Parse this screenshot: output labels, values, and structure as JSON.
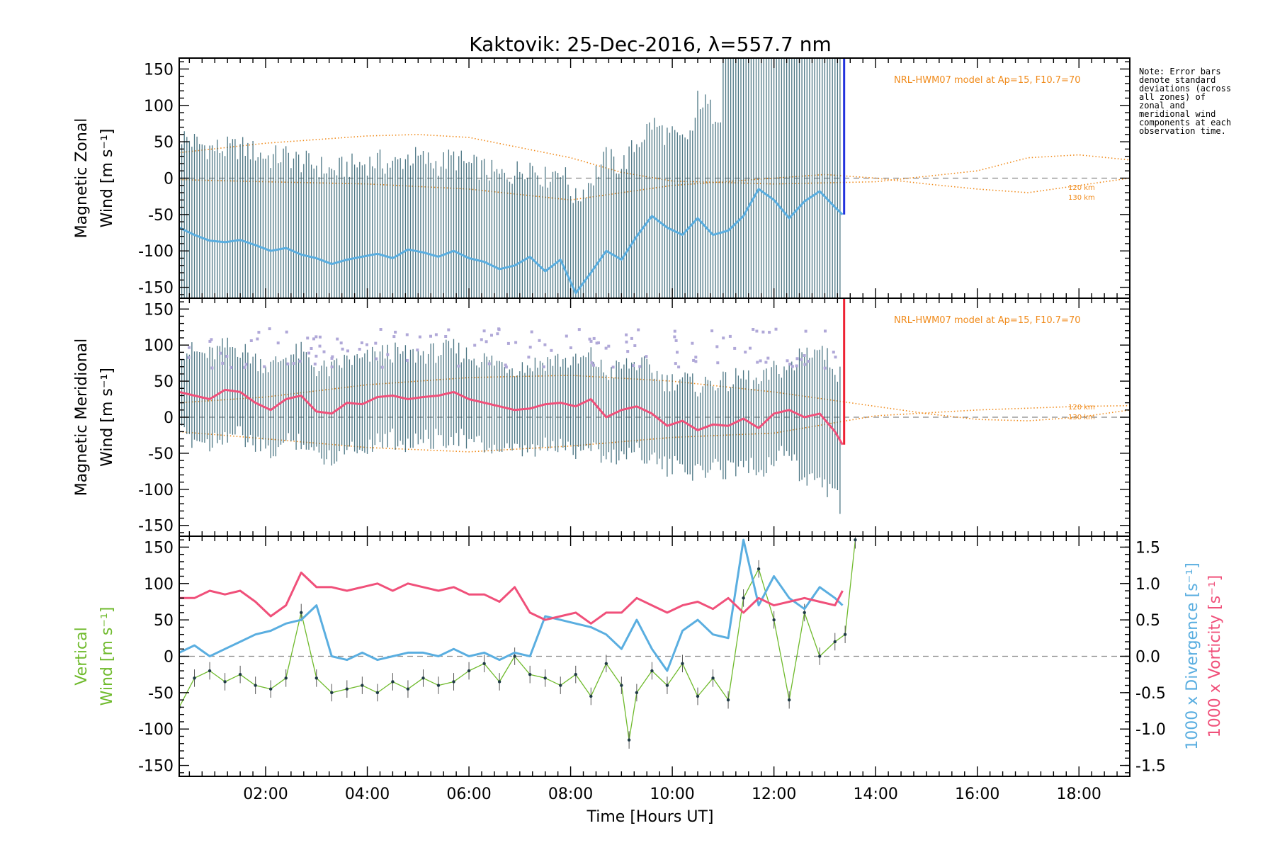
{
  "chart_data": {
    "title": "Kaktovik: 25-Dec-2016, λ=557.7 nm",
    "type": "line",
    "xlabel": "Time [Hours UT]",
    "x_tick_labels": [
      "02:00",
      "04:00",
      "06:00",
      "08:00",
      "10:00",
      "12:00",
      "14:00",
      "16:00",
      "18:00"
    ],
    "x_range_hours": [
      0.3,
      19.0
    ],
    "note": "Note: Error bars denote standard deviations (across all zones) of zonal and meridional wind components at each observation time.",
    "model_label": "NRL-HWM07 model at Ap=15, F10.7=70",
    "altitude_labels": [
      "120 km",
      "130 km"
    ],
    "panels": [
      {
        "id": "zonal",
        "ylabel_line1": "Magnetic Zonal",
        "ylabel_line2": "Wind [m s⁻¹]",
        "ylim": [
          -165,
          165
        ],
        "yticks": [
          150,
          100,
          50,
          0,
          -50,
          -100,
          -150
        ],
        "series": [
          {
            "color": "#5aaee0",
            "x": [
              0.3,
              0.6,
              0.9,
              1.2,
              1.5,
              1.8,
              2.1,
              2.4,
              2.7,
              3.0,
              3.3,
              3.6,
              3.9,
              4.2,
              4.5,
              4.8,
              5.1,
              5.4,
              5.7,
              6.0,
              6.3,
              6.6,
              6.9,
              7.2,
              7.5,
              7.8,
              8.1,
              8.4,
              8.7,
              9.0,
              9.3,
              9.6,
              9.9,
              10.2,
              10.5,
              10.8,
              11.1,
              11.4,
              11.7,
              12.0,
              12.3,
              12.6,
              12.9,
              13.2,
              13.35
            ],
            "values": [
              -68,
              -78,
              -86,
              -88,
              -85,
              -92,
              -100,
              -96,
              -105,
              -110,
              -118,
              -112,
              -108,
              -104,
              -110,
              -98,
              -102,
              -108,
              -100,
              -110,
              -115,
              -125,
              -120,
              -108,
              -128,
              -112,
              -158,
              -130,
              -100,
              -112,
              -80,
              -52,
              -68,
              -78,
              -55,
              -78,
              -72,
              -52,
              -15,
              -30,
              -55,
              -32,
              -18,
              -40,
              -50
            ]
          }
        ],
        "model_curves": [
          {
            "x": [
              0.3,
              2.0,
              4.0,
              5.0,
              6.0,
              8.0,
              9.0,
              10.0,
              12.0,
              14.0,
              16.0,
              17.0,
              18.0,
              19.0
            ],
            "values": [
              35,
              48,
              58,
              60,
              56,
              28,
              8,
              -4,
              -8,
              -5,
              10,
              28,
              32,
              25
            ]
          },
          {
            "x": [
              0.3,
              2.0,
              4.0,
              6.0,
              8.0,
              10.0,
              12.0,
              13.0,
              14.0,
              15.0,
              16.0,
              17.0,
              18.0,
              19.0
            ],
            "values": [
              -2,
              -5,
              -8,
              -15,
              -30,
              -10,
              0,
              5,
              0,
              -8,
              -15,
              -20,
              -10,
              0
            ]
          }
        ]
      },
      {
        "id": "meridional",
        "ylabel_line1": "Magnetic Meridional",
        "ylabel_line2": "Wind [m s⁻¹]",
        "ylim": [
          -165,
          165
        ],
        "yticks": [
          150,
          100,
          50,
          0,
          -50,
          -100,
          -150
        ],
        "series": [
          {
            "color": "#f0507a",
            "x": [
              0.3,
              0.6,
              0.9,
              1.2,
              1.5,
              1.8,
              2.1,
              2.4,
              2.7,
              3.0,
              3.3,
              3.6,
              3.9,
              4.2,
              4.5,
              4.8,
              5.1,
              5.4,
              5.7,
              6.0,
              6.3,
              6.6,
              6.9,
              7.2,
              7.5,
              7.8,
              8.1,
              8.4,
              8.7,
              9.0,
              9.3,
              9.6,
              9.9,
              10.2,
              10.5,
              10.8,
              11.1,
              11.4,
              11.7,
              12.0,
              12.3,
              12.6,
              12.9,
              13.2,
              13.35
            ],
            "values": [
              35,
              30,
              25,
              38,
              35,
              20,
              10,
              25,
              30,
              8,
              5,
              20,
              18,
              28,
              30,
              25,
              28,
              30,
              35,
              25,
              20,
              15,
              10,
              12,
              18,
              20,
              15,
              25,
              0,
              10,
              15,
              5,
              -12,
              -5,
              -18,
              -10,
              -12,
              -2,
              -15,
              5,
              10,
              0,
              5,
              -20,
              -38
            ]
          }
        ],
        "model_curves": [
          {
            "x": [
              0.3,
              2.0,
              4.0,
              6.0,
              8.0,
              10.0,
              12.0,
              13.0,
              14.0,
              16.0,
              18.0,
              19.0
            ],
            "values": [
              -20,
              -30,
              -42,
              -48,
              -40,
              -28,
              -22,
              -10,
              2,
              10,
              15,
              16
            ]
          },
          {
            "x": [
              0.3,
              2.0,
              4.0,
              6.0,
              8.0,
              10.0,
              12.0,
              13.0,
              14.0,
              15.0,
              16.0,
              17.0,
              18.0,
              19.0
            ],
            "values": [
              20,
              28,
              45,
              55,
              58,
              50,
              35,
              25,
              15,
              5,
              -3,
              -5,
              0,
              10
            ]
          }
        ]
      },
      {
        "id": "vertical",
        "ylabel_line1": "Vertical",
        "ylabel_line2": "Wind [m s⁻¹]",
        "ylabel_color": "#6fba2c",
        "ylim": [
          -165,
          165
        ],
        "yticks": [
          150,
          100,
          50,
          0,
          -50,
          -100,
          -150
        ],
        "y2label_divergence": "1000 x Divergence [s⁻¹]",
        "y2label_vorticity": "1000 x Vorticity [s⁻¹]",
        "y2_color_divergence": "#5aaee0",
        "y2_color_vorticity": "#f0507a",
        "y2lim": [
          -1.65,
          1.65
        ],
        "y2tick_labels": [
          "1.5",
          "1.0",
          "0.5",
          "0.0",
          "-0.5",
          "-1.0",
          "-1.5"
        ],
        "y2ticks": [
          1.5,
          1.0,
          0.5,
          0.0,
          -0.5,
          -1.0,
          -1.5
        ],
        "series": [
          {
            "name": "Vertical wind",
            "color": "#6fba2c",
            "axis": "left",
            "x": [
              0.3,
              0.6,
              0.9,
              1.2,
              1.5,
              1.8,
              2.1,
              2.4,
              2.7,
              3.0,
              3.3,
              3.6,
              3.9,
              4.2,
              4.5,
              4.8,
              5.1,
              5.4,
              5.7,
              6.0,
              6.3,
              6.6,
              6.9,
              7.2,
              7.5,
              7.8,
              8.1,
              8.4,
              8.7,
              9.0,
              9.15,
              9.3,
              9.6,
              9.9,
              10.2,
              10.5,
              10.8,
              11.1,
              11.4,
              11.7,
              12.0,
              12.3,
              12.6,
              12.9,
              13.2,
              13.4,
              13.6
            ],
            "values": [
              -70,
              -30,
              -20,
              -35,
              -25,
              -40,
              -45,
              -30,
              60,
              -30,
              -50,
              -45,
              -40,
              -50,
              -35,
              -45,
              -30,
              -40,
              -35,
              -20,
              -10,
              -35,
              0,
              -25,
              -30,
              -40,
              -25,
              -55,
              -10,
              -40,
              -115,
              -50,
              -20,
              -40,
              -10,
              -55,
              -30,
              -60,
              80,
              120,
              50,
              -60,
              60,
              0,
              20,
              30,
              160
            ]
          },
          {
            "name": "Divergence",
            "color": "#5aaee0",
            "axis": "right",
            "x": [
              0.3,
              0.6,
              0.9,
              1.2,
              1.5,
              1.8,
              2.1,
              2.4,
              2.7,
              3.0,
              3.3,
              3.6,
              3.9,
              4.2,
              4.5,
              4.8,
              5.1,
              5.4,
              5.7,
              6.0,
              6.3,
              6.6,
              6.9,
              7.2,
              7.5,
              7.8,
              8.1,
              8.4,
              8.7,
              9.0,
              9.3,
              9.6,
              9.9,
              10.2,
              10.5,
              10.8,
              11.1,
              11.4,
              11.7,
              12.0,
              12.3,
              12.6,
              12.9,
              13.2,
              13.35
            ],
            "values": [
              0.05,
              0.15,
              0.0,
              0.1,
              0.2,
              0.3,
              0.35,
              0.45,
              0.5,
              0.7,
              0.0,
              -0.05,
              0.05,
              -0.05,
              0.0,
              0.05,
              0.05,
              0.0,
              0.1,
              0.0,
              0.05,
              -0.05,
              0.05,
              0.0,
              0.55,
              0.5,
              0.45,
              0.4,
              0.3,
              0.1,
              0.5,
              0.1,
              -0.2,
              0.35,
              0.5,
              0.3,
              0.25,
              1.6,
              0.7,
              1.1,
              0.8,
              0.65,
              0.95,
              0.8,
              0.7
            ]
          },
          {
            "name": "Vorticity",
            "color": "#f0507a",
            "axis": "right",
            "x": [
              0.3,
              0.6,
              0.9,
              1.2,
              1.5,
              1.8,
              2.1,
              2.4,
              2.7,
              3.0,
              3.3,
              3.6,
              3.9,
              4.2,
              4.5,
              4.8,
              5.1,
              5.4,
              5.7,
              6.0,
              6.3,
              6.6,
              6.9,
              7.2,
              7.5,
              7.8,
              8.1,
              8.4,
              8.7,
              9.0,
              9.3,
              9.6,
              9.9,
              10.2,
              10.5,
              10.8,
              11.1,
              11.4,
              11.7,
              12.0,
              12.3,
              12.6,
              12.9,
              13.2,
              13.35
            ],
            "values": [
              0.8,
              0.8,
              0.9,
              0.85,
              0.9,
              0.75,
              0.55,
              0.7,
              1.15,
              0.95,
              0.95,
              0.9,
              0.95,
              1.0,
              0.9,
              1.0,
              0.95,
              0.9,
              0.95,
              0.85,
              0.85,
              0.75,
              0.95,
              0.6,
              0.5,
              0.55,
              0.6,
              0.45,
              0.6,
              0.6,
              0.8,
              0.7,
              0.6,
              0.7,
              0.75,
              0.65,
              0.8,
              0.6,
              0.8,
              0.7,
              0.75,
              0.8,
              0.75,
              0.7,
              0.9
            ]
          }
        ]
      }
    ]
  }
}
